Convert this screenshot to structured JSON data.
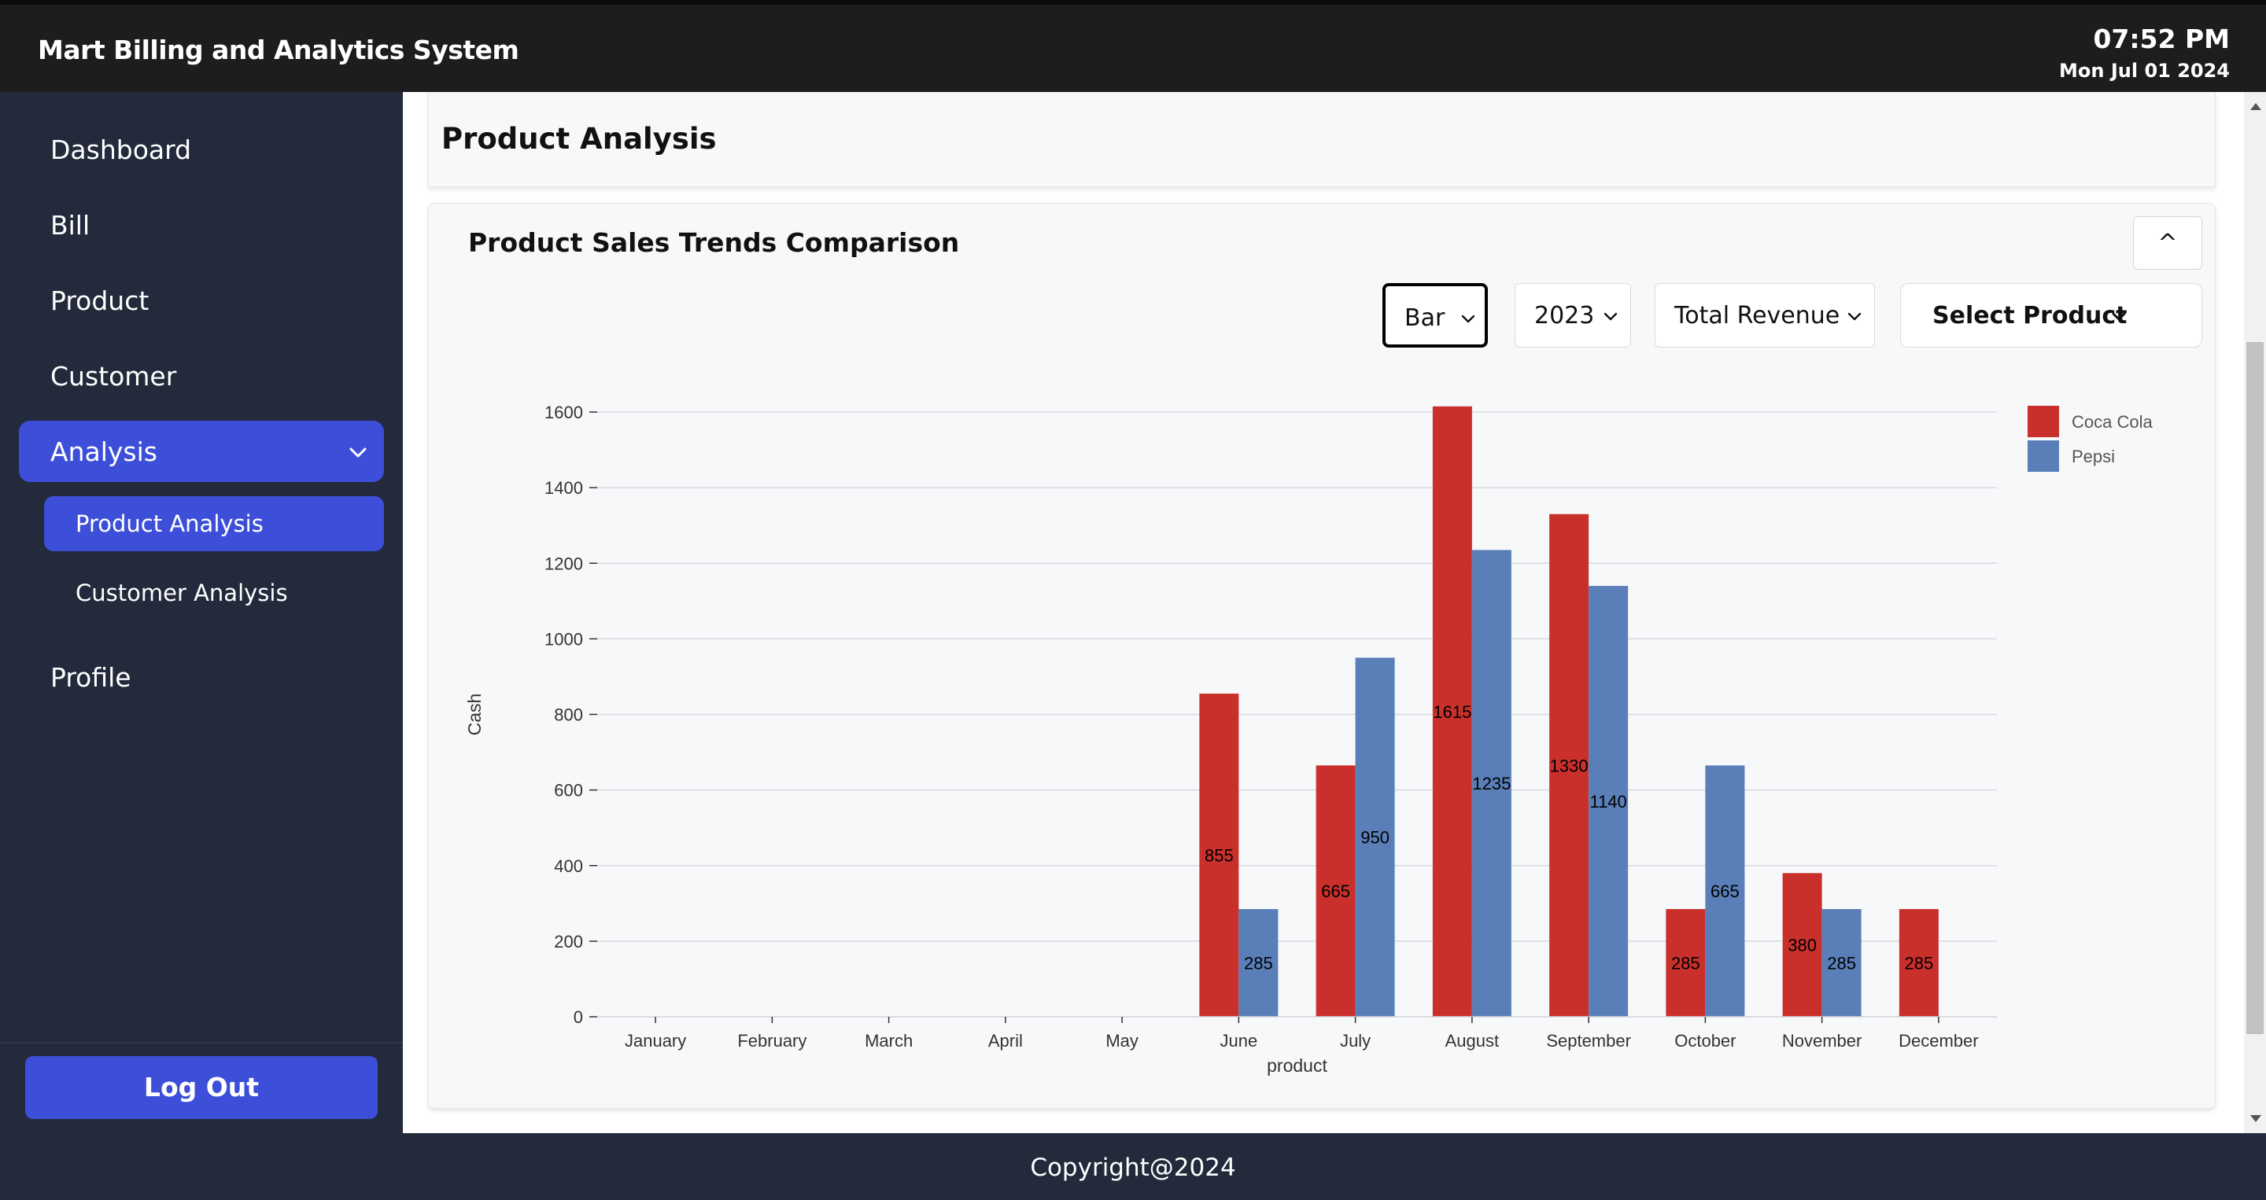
{
  "header": {
    "app_title": "Mart Billing and Analytics System",
    "time": "07:52 PM",
    "date": "Mon Jul 01 2024"
  },
  "sidebar": {
    "items": [
      {
        "label": "Dashboard"
      },
      {
        "label": "Bill"
      },
      {
        "label": "Product"
      },
      {
        "label": "Customer"
      },
      {
        "label": "Analysis",
        "active": true,
        "expanded": true
      },
      {
        "label": "Profile"
      }
    ],
    "analysis_sub": [
      {
        "label": "Product Analysis",
        "active": true
      },
      {
        "label": "Customer Analysis"
      }
    ],
    "logout_label": "Log Out"
  },
  "page": {
    "title": "Product Analysis"
  },
  "panel": {
    "title": "Product Sales Trends Comparison",
    "collapse_label": "^",
    "controls": {
      "chart_type": "Bar",
      "year": "2023",
      "metric": "Total Revenue",
      "product": "Select Product"
    }
  },
  "colors": {
    "accent": "#3d4fd9",
    "coca_cola": "#c9302c",
    "pepsi": "#5a7fb8",
    "sidebar_bg": "#222a3b",
    "topbar_bg": "#1d1d1d"
  },
  "chart_data": {
    "type": "bar",
    "categories": [
      "January",
      "February",
      "March",
      "April",
      "May",
      "June",
      "July",
      "August",
      "September",
      "October",
      "November",
      "December"
    ],
    "series": [
      {
        "name": "Coca Cola",
        "color": "#c9302c",
        "values": [
          0,
          0,
          0,
          0,
          0,
          855,
          665,
          1615,
          1330,
          285,
          380,
          285
        ]
      },
      {
        "name": "Pepsi",
        "color": "#5a7fb8",
        "values": [
          0,
          0,
          0,
          0,
          0,
          285,
          950,
          1235,
          1140,
          665,
          285,
          0
        ]
      }
    ],
    "data_labels": [
      [
        null,
        null,
        null,
        null,
        null,
        "855",
        "665",
        "1615",
        "1330",
        "285",
        "380",
        "285"
      ],
      [
        null,
        null,
        null,
        null,
        null,
        "285",
        "950",
        "1235",
        "1140",
        "665",
        "285",
        null
      ]
    ],
    "xlabel": "product",
    "ylabel": "Cash",
    "ylim": [
      0,
      1600
    ],
    "yticks": [
      "0",
      "200",
      "400",
      "600",
      "800",
      "1000",
      "1200",
      "1400",
      "1600"
    ],
    "grid": true,
    "legend_position": "top-right"
  },
  "footer": {
    "text": "Copyright@2024"
  }
}
